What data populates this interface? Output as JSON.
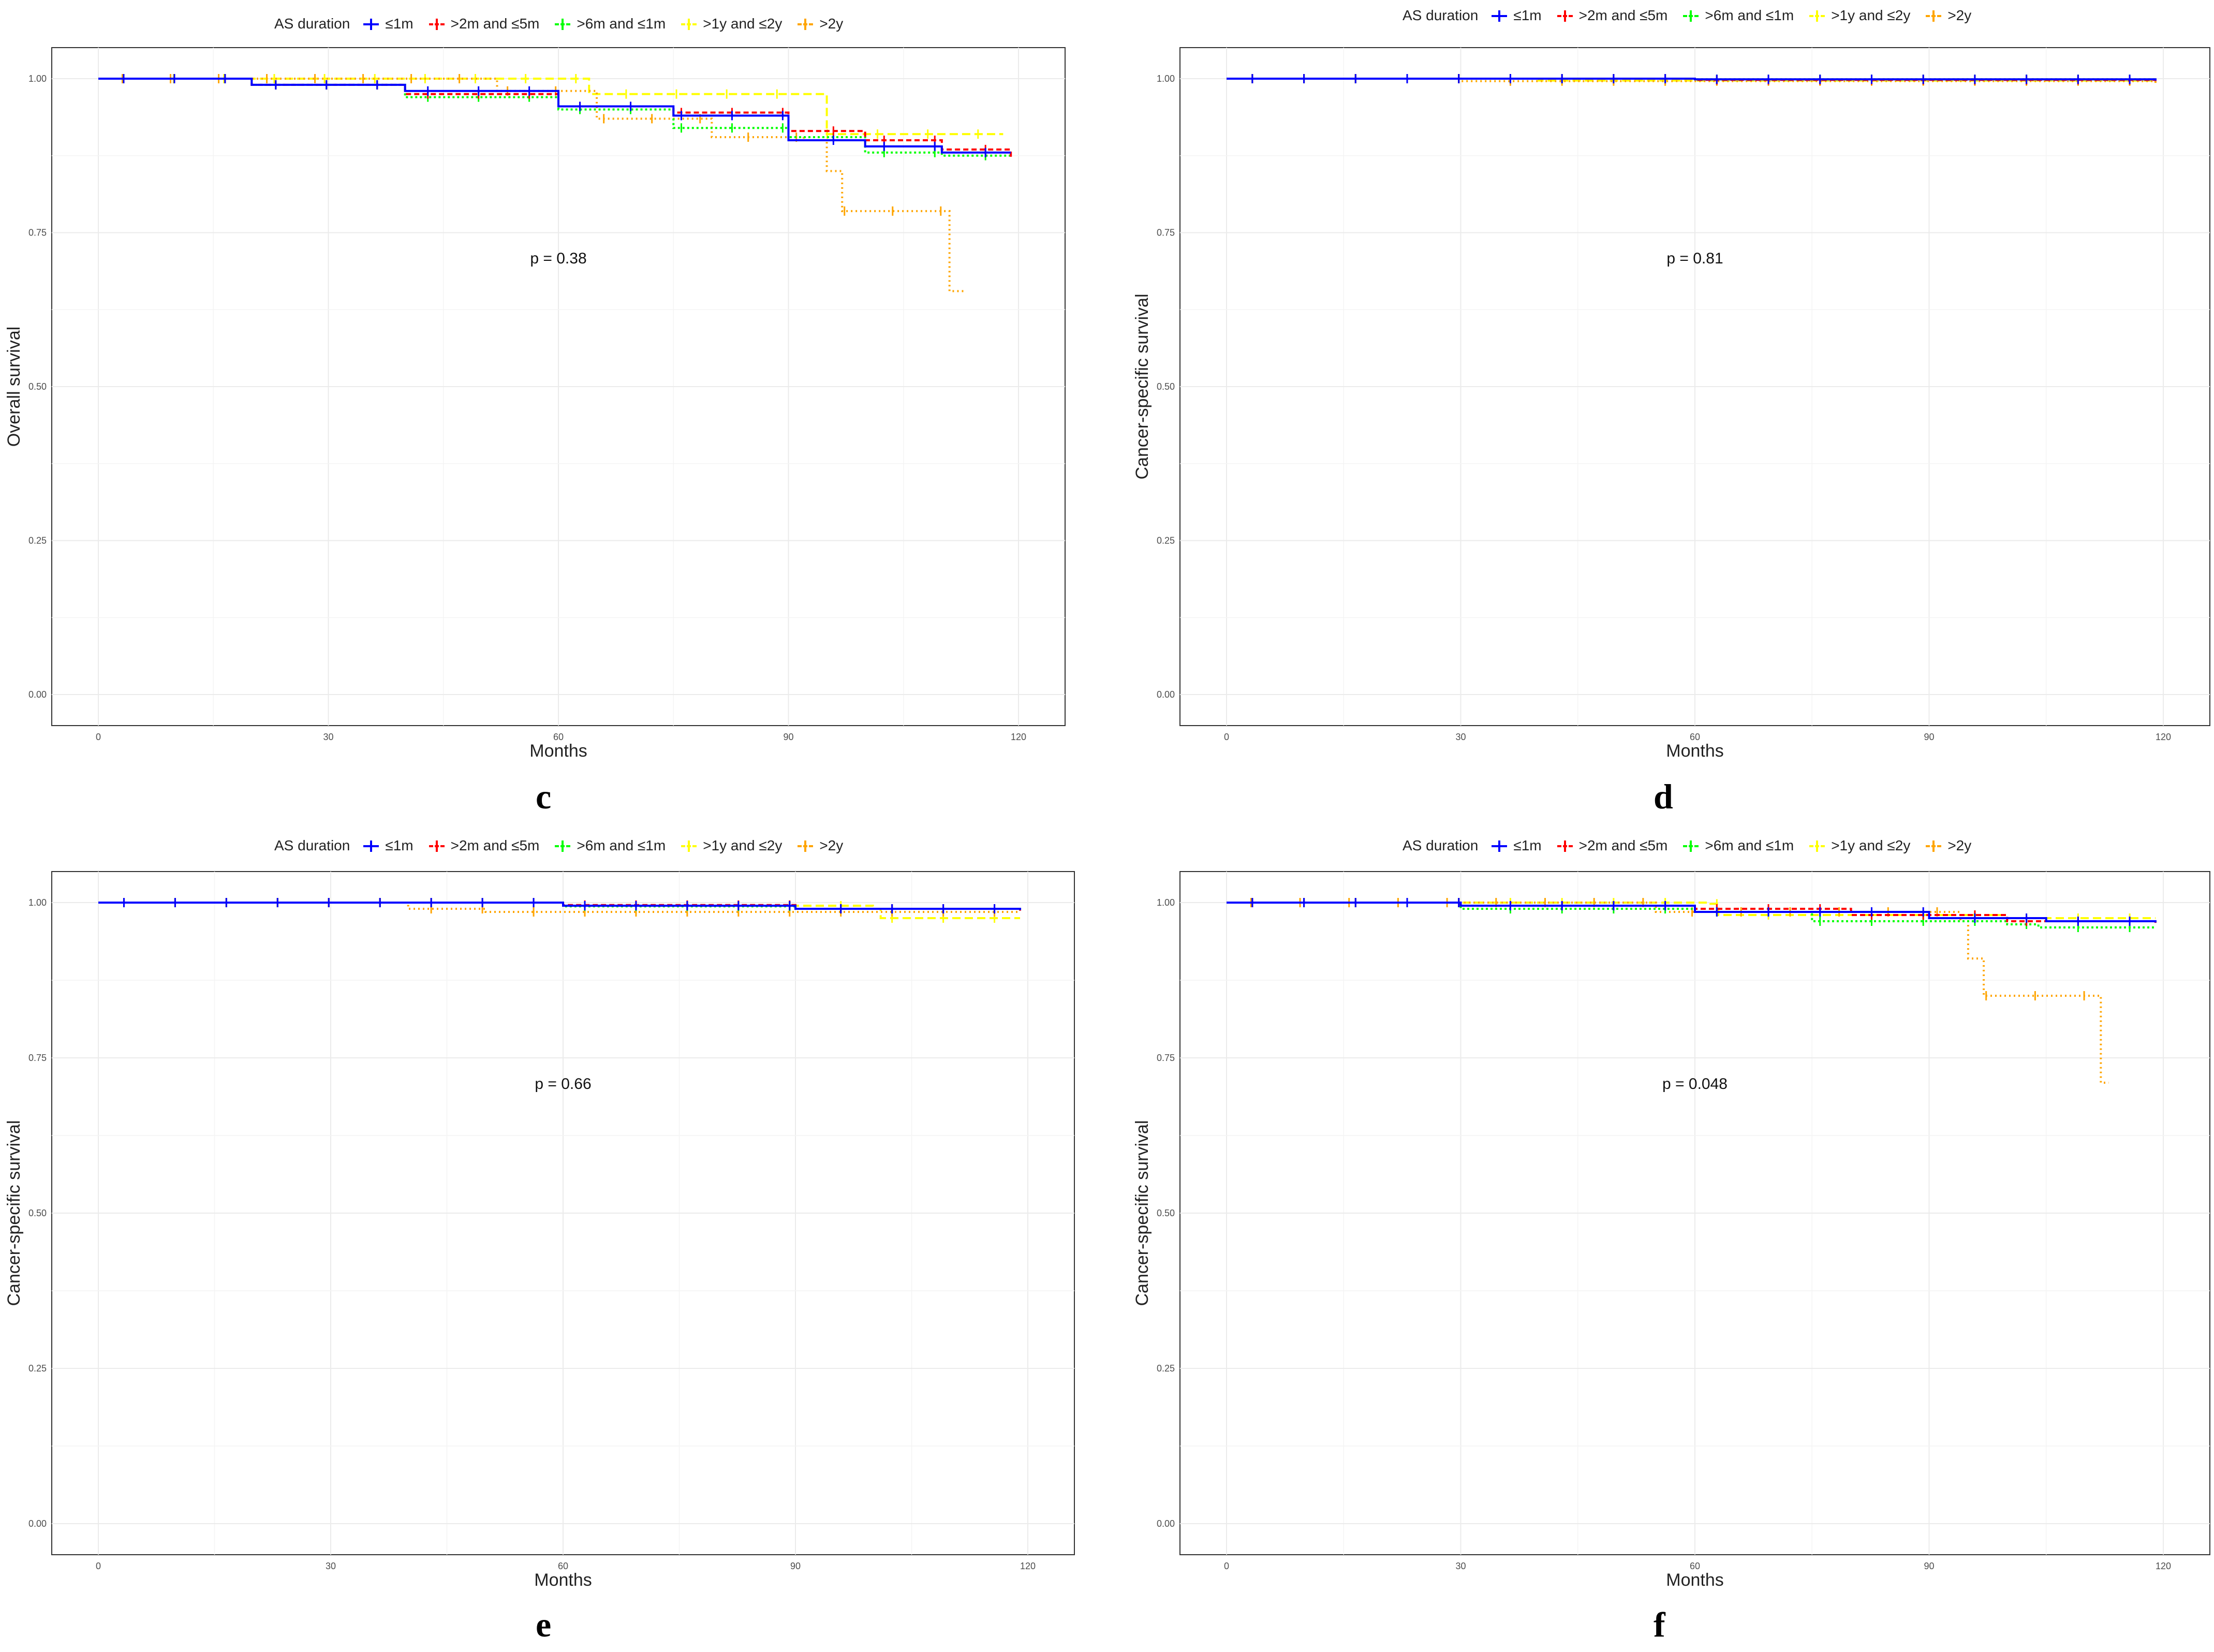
{
  "legend": {
    "title": "AS duration",
    "entries": [
      {
        "label": "≤1m",
        "color": "#0000ff",
        "dash": ""
      },
      {
        "label": ">2m and ≤5m",
        "color": "#ff0000",
        "dash": "10 6"
      },
      {
        "label": ">6m and ≤1m",
        "color": "#00ff00",
        "dash": "4 5"
      },
      {
        "label": ">1y and ≤2y",
        "color": "#ffff00",
        "dash": "16 8"
      },
      {
        "label": ">2y",
        "color": "#ffa500",
        "dash": "3 6"
      }
    ]
  },
  "chart_data": [
    {
      "panel": "c",
      "type": "line",
      "subtype": "kaplan-meier",
      "ylabel": "Overall survival",
      "xlabel": "Months",
      "p_value": "p = 0.38",
      "xlim": [
        0,
        120
      ],
      "ylim": [
        0,
        1
      ],
      "xticks": [
        "0",
        "30",
        "60",
        "90",
        "120"
      ],
      "yticks": [
        "0.00",
        "0.25",
        "0.50",
        "0.75",
        "1.00"
      ],
      "series": [
        {
          "name": "≤1m",
          "points": [
            [
              0,
              1.0
            ],
            [
              20,
              0.99
            ],
            [
              40,
              0.98
            ],
            [
              60,
              0.955
            ],
            [
              75,
              0.94
            ],
            [
              90,
              0.9
            ],
            [
              100,
              0.89
            ],
            [
              110,
              0.88
            ],
            [
              119,
              0.88
            ]
          ]
        },
        {
          "name": ">2m and ≤5m",
          "points": [
            [
              0,
              1.0
            ],
            [
              20,
              0.99
            ],
            [
              40,
              0.975
            ],
            [
              60,
              0.955
            ],
            [
              75,
              0.945
            ],
            [
              90,
              0.915
            ],
            [
              100,
              0.9
            ],
            [
              110,
              0.885
            ],
            [
              119,
              0.87
            ]
          ]
        },
        {
          "name": ">6m and ≤1m",
          "points": [
            [
              0,
              1.0
            ],
            [
              20,
              0.99
            ],
            [
              40,
              0.97
            ],
            [
              60,
              0.95
            ],
            [
              75,
              0.92
            ],
            [
              90,
              0.905
            ],
            [
              100,
              0.88
            ],
            [
              110,
              0.875
            ],
            [
              119,
              0.875
            ]
          ]
        },
        {
          "name": ">1y and ≤2y",
          "points": [
            [
              0,
              1.0
            ],
            [
              63,
              1.0
            ],
            [
              64,
              0.975
            ],
            [
              94,
              0.975
            ],
            [
              95,
              0.91
            ],
            [
              118,
              0.91
            ]
          ]
        },
        {
          "name": ">2y",
          "points": [
            [
              0,
              1.0
            ],
            [
              52,
              0.98
            ],
            [
              65,
              0.935
            ],
            [
              80,
              0.905
            ],
            [
              92,
              0.9
            ],
            [
              95,
              0.85
            ],
            [
              97,
              0.785
            ],
            [
              110,
              0.785
            ],
            [
              111,
              0.655
            ],
            [
              113,
              0.655
            ]
          ]
        }
      ]
    },
    {
      "panel": "d",
      "type": "line",
      "subtype": "kaplan-meier",
      "ylabel": "Cancer-specific survival",
      "xlabel": "Months",
      "p_value": "p = 0.81",
      "xlim": [
        0,
        120
      ],
      "ylim": [
        0,
        1
      ],
      "xticks": [
        "0",
        "30",
        "60",
        "90",
        "120"
      ],
      "yticks": [
        "0.00",
        "0.25",
        "0.50",
        "0.75",
        "1.00"
      ],
      "series": [
        {
          "name": "≤1m",
          "points": [
            [
              0,
              1.0
            ],
            [
              60,
              0.999
            ],
            [
              119,
              0.997
            ]
          ]
        },
        {
          "name": ">2m and ≤5m",
          "points": [
            [
              0,
              1.0
            ],
            [
              60,
              0.998
            ],
            [
              119,
              0.996
            ]
          ]
        },
        {
          "name": ">6m and ≤1m",
          "points": [
            [
              0,
              1.0
            ],
            [
              60,
              0.999
            ],
            [
              119,
              0.997
            ]
          ]
        },
        {
          "name": ">1y and ≤2y",
          "points": [
            [
              0,
              1.0
            ],
            [
              40,
              0.997
            ],
            [
              119,
              0.995
            ]
          ]
        },
        {
          "name": ">2y",
          "points": [
            [
              0,
              1.0
            ],
            [
              30,
              0.996
            ],
            [
              119,
              0.993
            ]
          ]
        }
      ]
    },
    {
      "panel": "e",
      "type": "line",
      "subtype": "kaplan-meier",
      "ylabel": "Cancer-specific survival",
      "xlabel": "Months",
      "p_value": "p = 0.66",
      "xlim": [
        0,
        120
      ],
      "ylim": [
        0,
        1
      ],
      "xticks": [
        "0",
        "30",
        "60",
        "90",
        "120"
      ],
      "yticks": [
        "0.00",
        "0.25",
        "0.50",
        "0.75",
        "1.00"
      ],
      "series": [
        {
          "name": "≤1m",
          "points": [
            [
              0,
              1.0
            ],
            [
              60,
              0.995
            ],
            [
              90,
              0.99
            ],
            [
              119,
              0.988
            ]
          ]
        },
        {
          "name": ">2m and ≤5m",
          "points": [
            [
              0,
              1.0
            ],
            [
              60,
              0.996
            ],
            [
              90,
              0.99
            ],
            [
              119,
              0.987
            ]
          ]
        },
        {
          "name": ">6m and ≤1m",
          "points": [
            [
              0,
              1.0
            ],
            [
              60,
              0.994
            ],
            [
              90,
              0.99
            ],
            [
              119,
              0.985
            ]
          ]
        },
        {
          "name": ">1y and ≤2y",
          "points": [
            [
              0,
              1.0
            ],
            [
              60,
              0.995
            ],
            [
              100,
              0.99
            ],
            [
              101,
              0.975
            ],
            [
              119,
              0.975
            ]
          ]
        },
        {
          "name": ">2y",
          "points": [
            [
              0,
              1.0
            ],
            [
              40,
              0.99
            ],
            [
              50,
              0.985
            ],
            [
              119,
              0.985
            ]
          ]
        }
      ]
    },
    {
      "panel": "f",
      "type": "line",
      "subtype": "kaplan-meier",
      "ylabel": "Cancer-specific survival",
      "xlabel": "Months",
      "p_value": "p = 0.048",
      "xlim": [
        0,
        120
      ],
      "ylim": [
        0,
        1
      ],
      "xticks": [
        "0",
        "30",
        "60",
        "90",
        "120"
      ],
      "yticks": [
        "0.00",
        "0.25",
        "0.50",
        "0.75",
        "1.00"
      ],
      "series": [
        {
          "name": "≤1m",
          "points": [
            [
              0,
              1.0
            ],
            [
              30,
              0.995
            ],
            [
              60,
              0.985
            ],
            [
              90,
              0.975
            ],
            [
              105,
              0.97
            ],
            [
              119,
              0.968
            ]
          ]
        },
        {
          "name": ">2m and ≤5m",
          "points": [
            [
              0,
              1.0
            ],
            [
              30,
              0.995
            ],
            [
              60,
              0.99
            ],
            [
              80,
              0.98
            ],
            [
              100,
              0.97
            ],
            [
              119,
              0.965
            ]
          ]
        },
        {
          "name": ">6m and ≤1m",
          "points": [
            [
              0,
              1.0
            ],
            [
              30,
              0.99
            ],
            [
              60,
              0.985
            ],
            [
              75,
              0.97
            ],
            [
              100,
              0.965
            ],
            [
              104,
              0.96
            ],
            [
              119,
              0.96
            ]
          ]
        },
        {
          "name": ">1y and ≤2y",
          "points": [
            [
              0,
              1.0
            ],
            [
              62,
              0.998
            ],
            [
              63,
              0.98
            ],
            [
              100,
              0.975
            ],
            [
              119,
              0.975
            ]
          ]
        },
        {
          "name": ">2y",
          "points": [
            [
              0,
              1.0
            ],
            [
              55,
              0.985
            ],
            [
              94,
              0.97
            ],
            [
              95,
              0.91
            ],
            [
              97,
              0.85
            ],
            [
              111,
              0.85
            ],
            [
              112,
              0.71
            ],
            [
              113,
              0.71
            ]
          ]
        }
      ]
    }
  ],
  "panel_labels": [
    "c",
    "d",
    "e",
    "f"
  ]
}
